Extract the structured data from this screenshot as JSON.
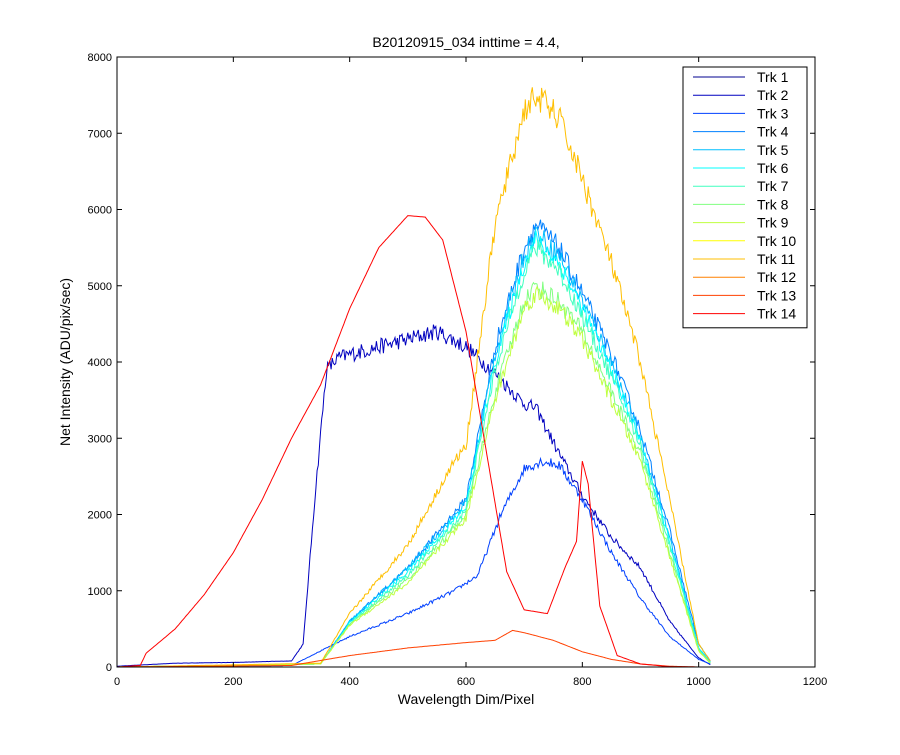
{
  "chart_data": {
    "type": "line",
    "title": "B20120915_034 inttime = 4.4,",
    "xlabel": "Wavelength Dim/Pixel",
    "ylabel": "Net Intensity (ADU/pix/sec)",
    "xlim": [
      0,
      1200
    ],
    "ylim": [
      0,
      8000
    ],
    "x_ticks": [
      0,
      200,
      400,
      600,
      800,
      1000,
      1200
    ],
    "y_ticks": [
      0,
      1000,
      2000,
      3000,
      4000,
      5000,
      6000,
      7000,
      8000
    ],
    "grid": false,
    "legend_position": "top-right",
    "series": [
      {
        "name": "Trk 1",
        "color": "#00008f",
        "x": [
          0,
          1020
        ],
        "y": [
          0,
          0
        ]
      },
      {
        "name": "Trk 2",
        "color": "#0000bf",
        "x": [
          0,
          100,
          200,
          300,
          320,
          340,
          360,
          380,
          400,
          500,
          550,
          600,
          650,
          700,
          720,
          760,
          800,
          850,
          900,
          950,
          1000,
          1020
        ],
        "y": [
          10,
          50,
          60,
          80,
          300,
          2200,
          3900,
          4050,
          4100,
          4300,
          4400,
          4200,
          3850,
          3450,
          3400,
          2800,
          2250,
          1700,
          1300,
          600,
          120,
          30
        ]
      },
      {
        "name": "Trk 3",
        "color": "#0040ff",
        "x": [
          0,
          300,
          400,
          500,
          580,
          620,
          660,
          700,
          730,
          760,
          800,
          850,
          900,
          950,
          1000,
          1020
        ],
        "y": [
          0,
          20,
          400,
          700,
          1000,
          1200,
          2000,
          2600,
          2700,
          2650,
          2200,
          1500,
          900,
          400,
          100,
          40
        ]
      },
      {
        "name": "Trk 4",
        "color": "#0080ff",
        "x": [
          0,
          350,
          400,
          500,
          600,
          650,
          700,
          720,
          760,
          800,
          850,
          900,
          950,
          1000,
          1020
        ],
        "y": [
          0,
          40,
          600,
          1300,
          2200,
          4200,
          5500,
          5800,
          5500,
          4900,
          4100,
          3100,
          1800,
          300,
          80
        ]
      },
      {
        "name": "Trk 5",
        "color": "#00bfff",
        "x": [
          0,
          350,
          400,
          500,
          600,
          650,
          700,
          720,
          760,
          800,
          850,
          900,
          950,
          1000,
          1020
        ],
        "y": [
          0,
          40,
          600,
          1300,
          2150,
          4100,
          5400,
          5700,
          5400,
          4800,
          4000,
          3000,
          1700,
          250,
          70
        ]
      },
      {
        "name": "Trk 6",
        "color": "#00ffff",
        "x": [
          0,
          350,
          400,
          500,
          600,
          650,
          700,
          720,
          760,
          800,
          850,
          900,
          950,
          1000,
          1020
        ],
        "y": [
          0,
          40,
          580,
          1250,
          2100,
          4000,
          5300,
          5600,
          5300,
          4700,
          3900,
          2950,
          1650,
          240,
          60
        ]
      },
      {
        "name": "Trk 7",
        "color": "#40ffbf",
        "x": [
          0,
          350,
          400,
          500,
          600,
          650,
          700,
          720,
          760,
          800,
          850,
          900,
          950,
          1000,
          1020
        ],
        "y": [
          0,
          40,
          570,
          1200,
          2050,
          3900,
          5200,
          5500,
          5200,
          4600,
          3800,
          2900,
          1600,
          230,
          60
        ]
      },
      {
        "name": "Trk 8",
        "color": "#80ff80",
        "x": [
          0,
          350,
          400,
          500,
          600,
          650,
          700,
          720,
          760,
          800,
          850,
          900,
          950,
          1000,
          1020
        ],
        "y": [
          0,
          40,
          560,
          1150,
          2000,
          3600,
          4800,
          5000,
          4800,
          4400,
          3600,
          2800,
          1500,
          220,
          50
        ]
      },
      {
        "name": "Trk 9",
        "color": "#bfff40",
        "x": [
          0,
          350,
          400,
          500,
          600,
          650,
          700,
          720,
          760,
          800,
          850,
          900,
          950,
          1000,
          1020
        ],
        "y": [
          0,
          40,
          550,
          1100,
          1950,
          3500,
          4700,
          4900,
          4700,
          4300,
          3500,
          2700,
          1450,
          210,
          50
        ]
      },
      {
        "name": "Trk 10",
        "color": "#ffff00",
        "x": [
          0,
          1020
        ],
        "y": [
          0,
          0
        ]
      },
      {
        "name": "Trk 11",
        "color": "#ffbf00",
        "x": [
          0,
          350,
          400,
          500,
          580,
          600,
          650,
          700,
          720,
          760,
          800,
          850,
          900,
          950,
          1000,
          1020
        ],
        "y": [
          0,
          50,
          700,
          1600,
          2700,
          2900,
          5800,
          7300,
          7500,
          7200,
          6400,
          5300,
          4000,
          2200,
          300,
          80
        ]
      },
      {
        "name": "Trk 12",
        "color": "#ff8000",
        "x": [
          0,
          1020
        ],
        "y": [
          0,
          0
        ]
      },
      {
        "name": "Trk 13",
        "color": "#ff4000",
        "x": [
          0,
          300,
          400,
          500,
          600,
          650,
          680,
          700,
          750,
          800,
          850,
          900,
          950,
          1000,
          1020
        ],
        "y": [
          0,
          20,
          150,
          250,
          320,
          350,
          480,
          450,
          350,
          200,
          100,
          40,
          10,
          0,
          0
        ]
      },
      {
        "name": "Trk 14",
        "color": "#ff0000",
        "x": [
          0,
          40,
          50,
          100,
          150,
          200,
          250,
          300,
          350,
          400,
          450,
          500,
          530,
          560,
          600,
          640,
          670,
          700,
          740,
          770,
          790,
          800,
          810,
          830,
          860,
          900,
          950,
          1000,
          1020
        ],
        "y": [
          0,
          20,
          180,
          500,
          950,
          1500,
          2200,
          3000,
          3700,
          4700,
          5500,
          5920,
          5900,
          5600,
          4400,
          2600,
          1250,
          750,
          700,
          1300,
          1650,
          2700,
          2400,
          800,
          150,
          40,
          5,
          0,
          0
        ]
      }
    ]
  }
}
